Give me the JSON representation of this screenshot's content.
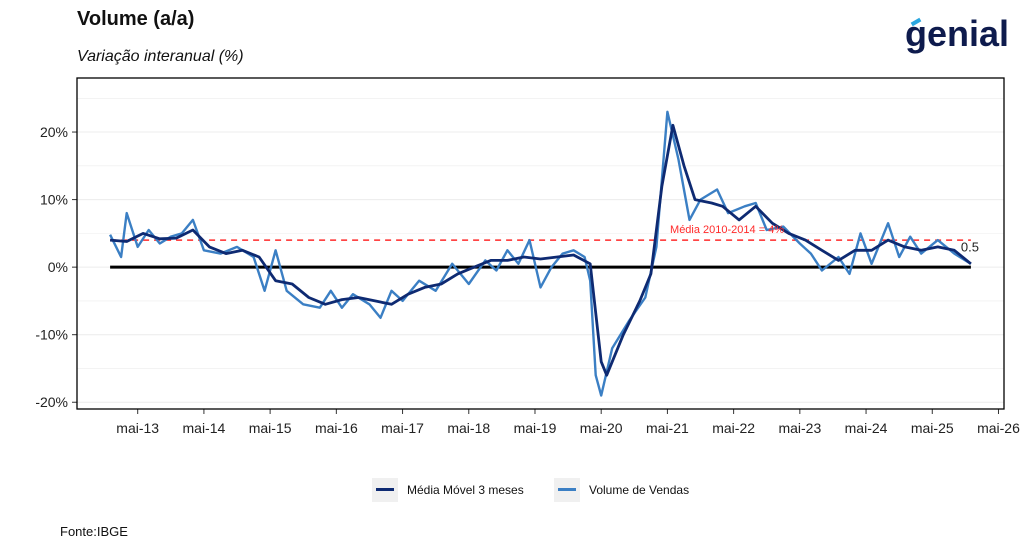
{
  "title": "Volume (a/a)",
  "subtitle": "Variação interanual (%)",
  "logo": "genial",
  "source": "Fonte:IBGE",
  "colors": {
    "moving_average": "#0e2a72",
    "sales": "#3b7fc4",
    "reference": "#ff2a2a",
    "zero_line": "#000000"
  },
  "chart_data": {
    "type": "line",
    "title": "Volume (a/a)",
    "subtitle": "Variação interanual (%)",
    "xlabel": "",
    "ylabel": "",
    "x_range": [
      "2012-06",
      "2026-06"
    ],
    "ylim": [
      -21,
      28
    ],
    "y_ticks": [
      -20,
      -10,
      0,
      10,
      20
    ],
    "y_tick_labels": [
      "-20%",
      "-10%",
      "0%",
      "10%",
      "20%"
    ],
    "x_tick_dates": [
      "2013-05",
      "2014-05",
      "2015-05",
      "2016-05",
      "2017-05",
      "2018-05",
      "2019-05",
      "2020-05",
      "2021-05",
      "2022-05",
      "2023-05",
      "2024-05",
      "2025-05",
      "2026-05"
    ],
    "x_tick_labels": [
      "mai-13",
      "mai-14",
      "mai-15",
      "mai-16",
      "mai-17",
      "mai-18",
      "mai-19",
      "mai-20",
      "mai-21",
      "mai-22",
      "mai-23",
      "mai-24",
      "mai-25",
      "mai-26"
    ],
    "grid": true,
    "legend_position": "bottom",
    "reference_line": {
      "value": 4,
      "label": "Média 2010-2014 = 4%"
    },
    "last_value_label": "0.5",
    "series": [
      {
        "name": "Média Móvel 3 meses",
        "points": [
          [
            "2012-12",
            4.0
          ],
          [
            "2013-03",
            3.8
          ],
          [
            "2013-06",
            5.0
          ],
          [
            "2013-09",
            4.2
          ],
          [
            "2013-12",
            4.3
          ],
          [
            "2014-03",
            5.5
          ],
          [
            "2014-06",
            3.0
          ],
          [
            "2014-09",
            2.0
          ],
          [
            "2014-12",
            2.5
          ],
          [
            "2015-03",
            1.5
          ],
          [
            "2015-06",
            -2.0
          ],
          [
            "2015-09",
            -2.5
          ],
          [
            "2015-12",
            -4.5
          ],
          [
            "2016-03",
            -5.5
          ],
          [
            "2016-06",
            -4.8
          ],
          [
            "2016-09",
            -4.5
          ],
          [
            "2016-12",
            -5.0
          ],
          [
            "2017-03",
            -5.5
          ],
          [
            "2017-06",
            -4.0
          ],
          [
            "2017-09",
            -3.0
          ],
          [
            "2017-12",
            -2.5
          ],
          [
            "2018-03",
            -1.0
          ],
          [
            "2018-06",
            0.0
          ],
          [
            "2018-09",
            1.0
          ],
          [
            "2018-12",
            1.0
          ],
          [
            "2019-03",
            1.5
          ],
          [
            "2019-06",
            1.2
          ],
          [
            "2019-09",
            1.5
          ],
          [
            "2019-12",
            1.8
          ],
          [
            "2020-03",
            0.5
          ],
          [
            "2020-05",
            -14.0
          ],
          [
            "2020-06",
            -16.0
          ],
          [
            "2020-09",
            -10.0
          ],
          [
            "2020-12",
            -5.0
          ],
          [
            "2021-02",
            -1.0
          ],
          [
            "2021-04",
            12.0
          ],
          [
            "2021-06",
            21.0
          ],
          [
            "2021-08",
            15.0
          ],
          [
            "2021-10",
            10.0
          ],
          [
            "2022-01",
            9.5
          ],
          [
            "2022-03",
            9.0
          ],
          [
            "2022-06",
            7.0
          ],
          [
            "2022-09",
            9.0
          ],
          [
            "2022-12",
            6.5
          ],
          [
            "2023-03",
            5.0
          ],
          [
            "2023-06",
            4.0
          ],
          [
            "2023-09",
            2.5
          ],
          [
            "2023-12",
            1.0
          ],
          [
            "2024-03",
            2.5
          ],
          [
            "2024-06",
            2.5
          ],
          [
            "2024-09",
            4.0
          ],
          [
            "2024-12",
            3.0
          ],
          [
            "2025-03",
            2.5
          ],
          [
            "2025-06",
            3.0
          ],
          [
            "2025-09",
            2.5
          ],
          [
            "2025-12",
            0.5
          ]
        ]
      },
      {
        "name": "Volume de Vendas",
        "points": [
          [
            "2012-12",
            4.8
          ],
          [
            "2013-02",
            1.5
          ],
          [
            "2013-03",
            8.0
          ],
          [
            "2013-05",
            3.0
          ],
          [
            "2013-07",
            5.5
          ],
          [
            "2013-09",
            3.5
          ],
          [
            "2013-11",
            4.5
          ],
          [
            "2014-01",
            5.0
          ],
          [
            "2014-03",
            7.0
          ],
          [
            "2014-05",
            2.5
          ],
          [
            "2014-08",
            2.0
          ],
          [
            "2014-11",
            3.0
          ],
          [
            "2015-02",
            1.5
          ],
          [
            "2015-04",
            -3.5
          ],
          [
            "2015-06",
            2.5
          ],
          [
            "2015-08",
            -3.5
          ],
          [
            "2015-11",
            -5.5
          ],
          [
            "2016-02",
            -6.0
          ],
          [
            "2016-04",
            -3.5
          ],
          [
            "2016-06",
            -6.0
          ],
          [
            "2016-08",
            -4.0
          ],
          [
            "2016-11",
            -5.5
          ],
          [
            "2017-01",
            -7.5
          ],
          [
            "2017-03",
            -3.5
          ],
          [
            "2017-05",
            -5.0
          ],
          [
            "2017-08",
            -2.0
          ],
          [
            "2017-11",
            -3.5
          ],
          [
            "2018-02",
            0.5
          ],
          [
            "2018-05",
            -2.5
          ],
          [
            "2018-08",
            1.0
          ],
          [
            "2018-10",
            -0.5
          ],
          [
            "2018-12",
            2.5
          ],
          [
            "2019-02",
            0.5
          ],
          [
            "2019-04",
            4.0
          ],
          [
            "2019-06",
            -3.0
          ],
          [
            "2019-08",
            0.0
          ],
          [
            "2019-10",
            2.0
          ],
          [
            "2019-12",
            2.5
          ],
          [
            "2020-02",
            1.5
          ],
          [
            "2020-03",
            -2.0
          ],
          [
            "2020-04",
            -16.0
          ],
          [
            "2020-05",
            -19.0
          ],
          [
            "2020-07",
            -12.0
          ],
          [
            "2020-10",
            -8.0
          ],
          [
            "2021-01",
            -4.5
          ],
          [
            "2021-03",
            3.0
          ],
          [
            "2021-05",
            23.0
          ],
          [
            "2021-07",
            16.0
          ],
          [
            "2021-09",
            7.0
          ],
          [
            "2021-11",
            10.0
          ],
          [
            "2022-02",
            11.5
          ],
          [
            "2022-04",
            8.0
          ],
          [
            "2022-07",
            9.0
          ],
          [
            "2022-09",
            9.5
          ],
          [
            "2022-11",
            5.5
          ],
          [
            "2023-02",
            6.0
          ],
          [
            "2023-05",
            3.5
          ],
          [
            "2023-07",
            2.0
          ],
          [
            "2023-09",
            -0.5
          ],
          [
            "2023-12",
            1.5
          ],
          [
            "2024-02",
            -1.0
          ],
          [
            "2024-04",
            5.0
          ],
          [
            "2024-06",
            0.5
          ],
          [
            "2024-09",
            6.5
          ],
          [
            "2024-11",
            1.5
          ],
          [
            "2025-01",
            4.5
          ],
          [
            "2025-03",
            2.0
          ],
          [
            "2025-06",
            4.0
          ],
          [
            "2025-09",
            2.0
          ],
          [
            "2025-12",
            0.5
          ]
        ]
      }
    ]
  }
}
